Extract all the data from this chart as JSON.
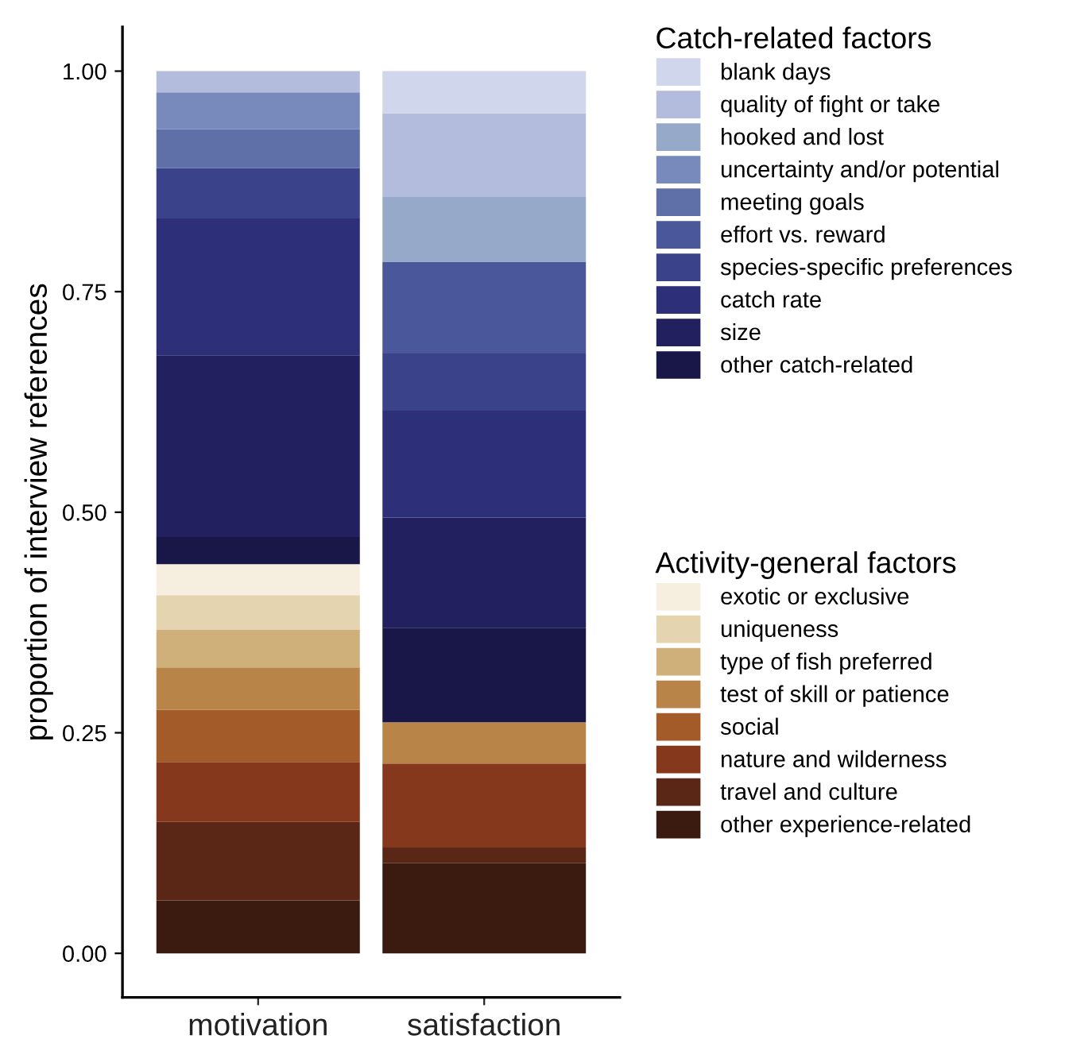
{
  "chart_data": {
    "type": "bar",
    "stacked": true,
    "ylabel": "proportion of interview references",
    "categories": [
      "motivation",
      "satisfaction"
    ],
    "legend_title": [
      "Catch-related factors",
      "Activity-general factors"
    ],
    "legend": "right",
    "grid": false,
    "ylim": [
      -0.05,
      1.05
    ],
    "yticks": [
      {
        "value": 0,
        "label": "0.00"
      },
      {
        "value": 0.25,
        "label": "0.25"
      },
      {
        "value": 0.5,
        "label": "0.50"
      },
      {
        "value": 0.75,
        "label": "0.75"
      },
      {
        "value": 1,
        "label": "1.00"
      }
    ],
    "series": [
      {
        "name": "other experience-related",
        "color": "#3b1a10",
        "values": [
          0.06,
          0.102
        ]
      },
      {
        "name": "travel and culture",
        "color": "#5a2616",
        "values": [
          0.089,
          0.018
        ]
      },
      {
        "name": "nature and wilderness",
        "color": "#86381d",
        "values": [
          0.068,
          0.095
        ]
      },
      {
        "name": "social",
        "color": "#a45b2a",
        "values": [
          0.059,
          0
        ]
      },
      {
        "name": "test of skill or patience",
        "color": "#b98447",
        "values": [
          0.048,
          0.047
        ]
      },
      {
        "name": "type of fish preferred",
        "color": "#cfb07a",
        "values": [
          0.043,
          0
        ]
      },
      {
        "name": "uniqueness",
        "color": "#e4d4b0",
        "values": [
          0.039,
          0
        ]
      },
      {
        "name": "exotic or exclusive",
        "color": "#f6efe0",
        "values": [
          0.035,
          0
        ]
      },
      {
        "name": "other catch-related",
        "color": "#191747",
        "values": [
          0.031,
          0.107
        ]
      },
      {
        "name": "size",
        "color": "#22205e",
        "values": [
          0.206,
          0.125
        ]
      },
      {
        "name": "catch rate",
        "color": "#2d2f78",
        "values": [
          0.155,
          0.121
        ]
      },
      {
        "name": "species-specific preferences",
        "color": "#3a4389",
        "values": [
          0.057,
          0.065
        ]
      },
      {
        "name": "effort vs. reward",
        "color": "#4b579b",
        "values": [
          0,
          0.104
        ]
      },
      {
        "name": "meeting goals",
        "color": "#5f6fa8",
        "values": [
          0.044,
          0
        ]
      },
      {
        "name": "uncertainty and/or potential",
        "color": "#7889bb",
        "values": [
          0.042,
          0
        ]
      },
      {
        "name": "hooked and lost",
        "color": "#97a9c9",
        "values": [
          0,
          0.074
        ]
      },
      {
        "name": "quality of fight or take",
        "color": "#b3bcdd",
        "values": [
          0.024,
          0.094
        ]
      },
      {
        "name": "blank days",
        "color": "#d0d6ec",
        "values": [
          0,
          0.048
        ]
      }
    ]
  }
}
